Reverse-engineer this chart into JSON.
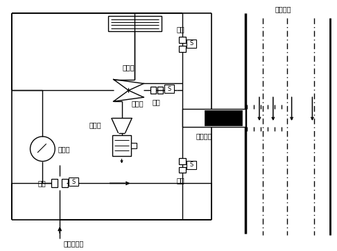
{
  "bg_color": "#ffffff",
  "lc": "#000000",
  "tc": "#000000",
  "fs": 7.0,
  "labels": {
    "chouqiqi": "抽气器",
    "fenliqi": "分离器",
    "liyabiao": "压力表",
    "dakai_bottom": "打开",
    "guanbi_top": "关闭",
    "guanbi_bottom": "关闭",
    "dakai_mid": "打开",
    "quyangqiang": "取样枪",
    "mifengganzuo": "密封管座",
    "guolu": "锅炉烟道",
    "yasuokongqilai": "压缩空气来"
  }
}
